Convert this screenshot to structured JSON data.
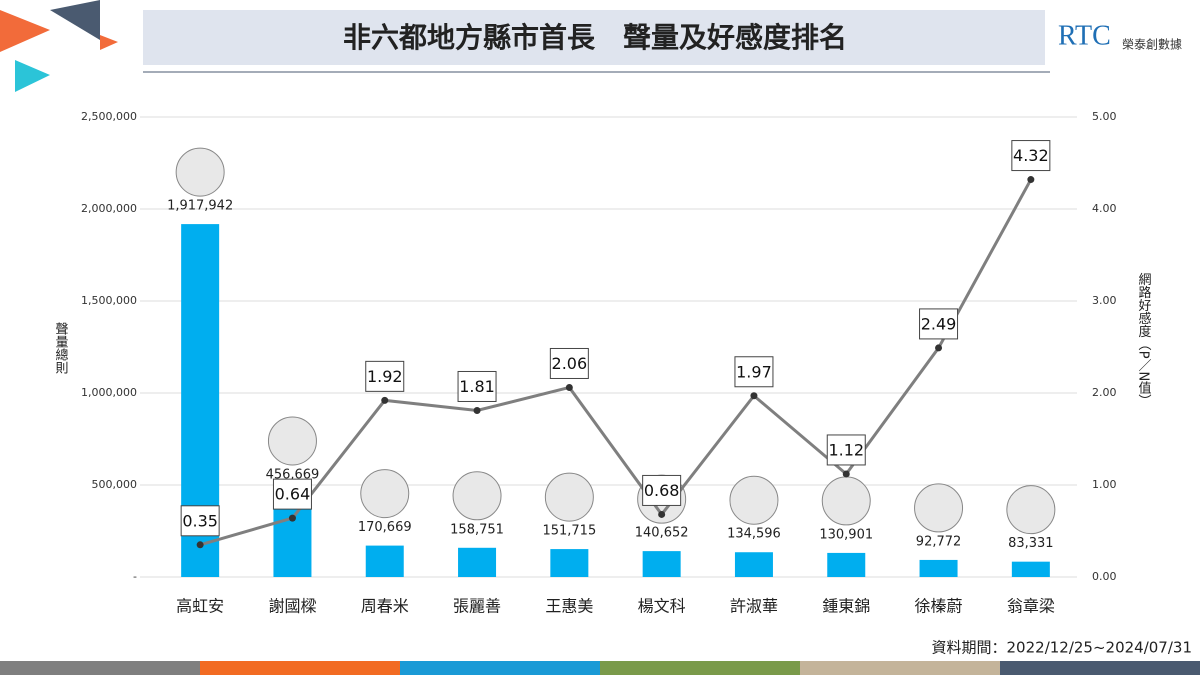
{
  "chart_data": {
    "type": "bar_line",
    "title": "非六都地方縣市首長　聲量及好感度排名",
    "logo": {
      "mark": "RTC",
      "name": "榮泰創數據"
    },
    "y_label": "聲量總則",
    "y2_label": "網路好感度（P／N值）",
    "note": "資料期間：2022/12/25~2024/07/31",
    "categories": [
      "高虹安",
      "謝國樑",
      "周春米",
      "張麗善",
      "王惠美",
      "楊文科",
      "許淑華",
      "鍾東錦",
      "徐榛蔚",
      "翁章梁"
    ],
    "series": [
      {
        "type": "bar",
        "color": "#00aeef",
        "values": [
          1917942,
          456669,
          170669,
          158751,
          151715,
          140652,
          134596,
          130901,
          92772,
          83331
        ],
        "value_labels": [
          "1,917,942",
          "456,669",
          "170,669",
          "158,751",
          "151,715",
          "140,652",
          "134,596",
          "130,901",
          "92,772",
          "83,331"
        ]
      },
      {
        "type": "line",
        "axis": "y2",
        "color": "#7f7f7f",
        "values": [
          0.35,
          0.64,
          1.92,
          1.81,
          2.06,
          0.68,
          1.97,
          1.12,
          2.49,
          4.32
        ]
      }
    ],
    "ylim": [
      0,
      2500000
    ],
    "yticks": [
      {
        "value": 0,
        "label": "-"
      },
      {
        "value": 500000,
        "label": "500,000"
      },
      {
        "value": 1000000,
        "label": "1,000,000"
      },
      {
        "value": 1500000,
        "label": "1,500,000"
      },
      {
        "value": 2000000,
        "label": "2,000,000"
      },
      {
        "value": 2500000,
        "label": "2,500,000"
      }
    ],
    "y2lim": [
      0,
      5
    ],
    "y2ticks": [
      {
        "value": 0,
        "label": "0.00"
      },
      {
        "value": 1,
        "label": "1.00"
      },
      {
        "value": 2,
        "label": "2.00"
      },
      {
        "value": 3,
        "label": "3.00"
      },
      {
        "value": 4,
        "label": "4.00"
      },
      {
        "value": 5,
        "label": "5.00"
      }
    ],
    "grid": true
  }
}
